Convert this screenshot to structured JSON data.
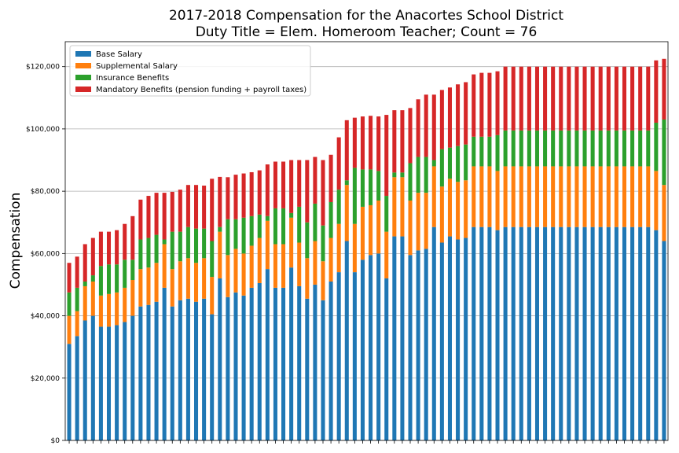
{
  "chart_data": {
    "type": "bar",
    "stacked": true,
    "title": "2017-2018 Compensation for the Anacortes School District",
    "subtitle": "Duty Title = Elem. Homeroom Teacher; Count = 76",
    "ylabel": "Compensation",
    "xlabel": "",
    "ylim": [
      0,
      128000
    ],
    "yticks": [
      0,
      20000,
      40000,
      60000,
      80000,
      100000,
      120000
    ],
    "ytick_labels": [
      "$0",
      "$20,000",
      "$40,000",
      "$60,000",
      "$80,000",
      "$100,000",
      "$120,000"
    ],
    "grid": "y",
    "legend_position": "top-left",
    "series": [
      {
        "name": "Base Salary",
        "color": "#1f77b4",
        "values": [
          31000,
          33500,
          38500,
          40000,
          36500,
          36500,
          37000,
          38000,
          40000,
          43000,
          43500,
          44500,
          49000,
          43000,
          45000,
          45500,
          44500,
          45500,
          40500,
          52000,
          46000,
          47500,
          46500,
          49000,
          50500,
          55000,
          49000,
          49000,
          55500,
          49500,
          45500,
          50000,
          45000,
          51000,
          54000,
          64000,
          54000,
          58000,
          59500,
          60000,
          52000,
          65500,
          65500,
          59500,
          61000,
          61500,
          68500,
          63500,
          65500,
          64500,
          65000,
          68500,
          68500,
          68500,
          67500,
          68500,
          68500,
          68500,
          68500,
          68500,
          68500,
          68500,
          68500,
          68500,
          68500,
          68500,
          68500,
          68500,
          68500,
          68500,
          68500,
          68500,
          68500,
          68500,
          67500,
          64000
        ]
      },
      {
        "name": "Supplemental Salary",
        "color": "#ff7f0e",
        "values": [
          9000,
          8000,
          11000,
          11000,
          10000,
          10500,
          10500,
          11000,
          11500,
          12000,
          12000,
          12500,
          14000,
          12000,
          12500,
          13000,
          12500,
          13000,
          12000,
          15000,
          13500,
          14000,
          13500,
          13500,
          14500,
          15500,
          14000,
          14000,
          16000,
          14000,
          13000,
          14000,
          12500,
          14000,
          15500,
          18000,
          15500,
          17000,
          16000,
          17000,
          15000,
          19000,
          19000,
          17500,
          18500,
          18000,
          19500,
          18000,
          18500,
          18500,
          18500,
          19500,
          19500,
          19500,
          19000,
          19500,
          19500,
          19500,
          19500,
          19500,
          19500,
          19500,
          19500,
          19500,
          19500,
          19500,
          19500,
          19500,
          19500,
          19500,
          19500,
          19500,
          19500,
          19500,
          19000,
          18000
        ]
      },
      {
        "name": "Insurance Benefits",
        "color": "#2ca02c",
        "values": [
          7500,
          7500,
          1500,
          2000,
          9500,
          9500,
          9000,
          9000,
          6500,
          9500,
          9500,
          9000,
          1500,
          12000,
          9500,
          10000,
          11000,
          9500,
          11500,
          1500,
          11500,
          9500,
          11500,
          9500,
          7500,
          1500,
          11500,
          11500,
          1500,
          11500,
          11500,
          12000,
          11500,
          11500,
          11000,
          1500,
          18000,
          12000,
          11500,
          9500,
          11500,
          1500,
          1500,
          12000,
          11500,
          11500,
          2000,
          12000,
          10000,
          11500,
          11500,
          9500,
          9500,
          9500,
          11500,
          11500,
          11500,
          11500,
          11500,
          11500,
          11500,
          11500,
          11500,
          11500,
          11500,
          11500,
          11500,
          11500,
          11500,
          11500,
          11500,
          11500,
          11500,
          11500,
          15500,
          21000
        ]
      },
      {
        "name": "Mandatory Benefits (pension funding + payroll taxes)",
        "color": "#d62728",
        "values": [
          9500,
          10000,
          12000,
          12000,
          11000,
          10500,
          11000,
          11500,
          14000,
          12800,
          13500,
          13500,
          15000,
          12800,
          13500,
          13500,
          14000,
          13800,
          20000,
          16100,
          13500,
          14300,
          14200,
          14100,
          14200,
          16600,
          15000,
          15000,
          17000,
          15000,
          20000,
          15000,
          21000,
          15200,
          16800,
          19300,
          16100,
          17000,
          17200,
          17500,
          26000,
          20000,
          20000,
          17700,
          18500,
          20000,
          21000,
          19000,
          19300,
          19800,
          20000,
          20000,
          20500,
          20500,
          20500,
          20500,
          20500,
          20500,
          20500,
          20500,
          20500,
          20500,
          20500,
          20500,
          20500,
          20500,
          20500,
          20500,
          20500,
          20500,
          20500,
          20500,
          20500,
          20500,
          20000,
          19500
        ]
      }
    ]
  }
}
